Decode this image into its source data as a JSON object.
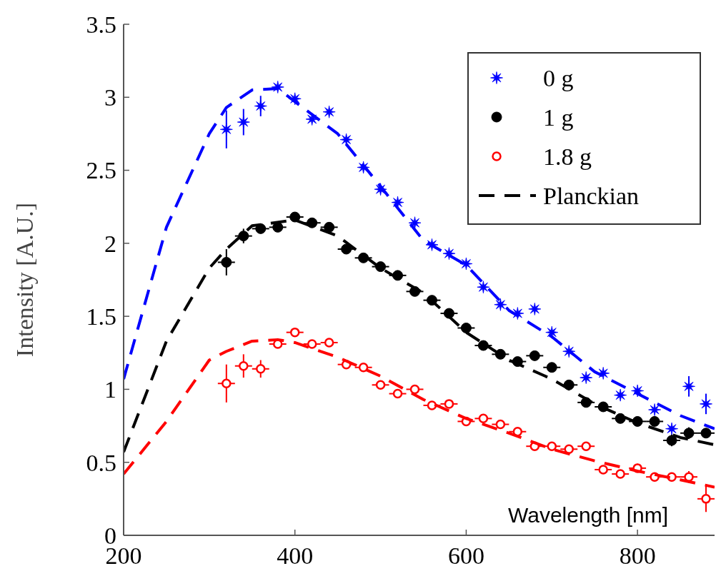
{
  "chart_data": {
    "type": "scatter",
    "xlabel": "Wavelength [nm]",
    "ylabel": "Intensity [A.U.]",
    "xlim": [
      200,
      890
    ],
    "ylim": [
      0,
      3.5
    ],
    "xticks": [
      200,
      400,
      600,
      800
    ],
    "yticks": [
      0,
      0.5,
      1,
      1.5,
      2,
      2.5,
      3,
      3.5
    ],
    "grid": false,
    "legend": "top right",
    "x": [
      320,
      340,
      360,
      380,
      400,
      420,
      440,
      460,
      480,
      500,
      520,
      540,
      560,
      580,
      600,
      620,
      640,
      660,
      680,
      700,
      720,
      740,
      760,
      780,
      800,
      820,
      840,
      860,
      880
    ],
    "series": [
      {
        "name": "0 g",
        "marker": "star",
        "color": "#0000ff",
        "values": [
          2.78,
          2.83,
          2.94,
          3.07,
          2.99,
          2.85,
          2.9,
          2.71,
          2.52,
          2.37,
          2.28,
          2.14,
          1.99,
          1.93,
          1.86,
          1.7,
          1.58,
          1.52,
          1.55,
          1.39,
          1.26,
          1.08,
          1.11,
          0.96,
          0.99,
          0.86,
          0.73,
          1.02,
          0.9
        ],
        "errors": [
          0.13,
          0.09,
          0.07,
          null,
          null,
          null,
          null,
          null,
          null,
          null,
          null,
          null,
          null,
          null,
          null,
          null,
          null,
          null,
          null,
          null,
          null,
          null,
          null,
          null,
          null,
          null,
          null,
          0.07,
          0.07
        ]
      },
      {
        "name": "1 g",
        "marker": "circle",
        "color": "#000000",
        "values": [
          1.87,
          2.05,
          2.1,
          2.11,
          2.18,
          2.14,
          2.11,
          1.96,
          1.9,
          1.84,
          1.78,
          1.67,
          1.61,
          1.52,
          1.42,
          1.3,
          1.24,
          1.19,
          1.23,
          1.15,
          1.03,
          0.91,
          0.88,
          0.8,
          0.78,
          0.78,
          0.65,
          0.7,
          0.7
        ],
        "errors": [
          0.09,
          0.05,
          null,
          null,
          null,
          null,
          null,
          null,
          null,
          null,
          null,
          null,
          null,
          null,
          null,
          null,
          null,
          null,
          null,
          null,
          null,
          null,
          null,
          null,
          null,
          null,
          0.04,
          0.04,
          null
        ],
        "xerrors": [
          10,
          10,
          10,
          10,
          10,
          10,
          10,
          10,
          10,
          10,
          10,
          10,
          10,
          10,
          10,
          10,
          10,
          10,
          10,
          10,
          10,
          10,
          10,
          10,
          10,
          10,
          10,
          10,
          10
        ]
      },
      {
        "name": "1.8 g",
        "marker": "circle",
        "color": "#ff0000",
        "values": [
          1.04,
          1.16,
          1.14,
          1.31,
          1.39,
          1.31,
          1.32,
          1.17,
          1.15,
          1.03,
          0.97,
          1.0,
          0.89,
          0.9,
          0.78,
          0.8,
          0.76,
          0.71,
          0.61,
          0.61,
          0.59,
          0.61,
          0.45,
          0.42,
          0.46,
          0.4,
          0.4,
          0.4,
          0.25
        ],
        "errors": [
          0.13,
          0.08,
          0.06,
          null,
          null,
          null,
          null,
          null,
          null,
          null,
          null,
          null,
          null,
          null,
          null,
          null,
          null,
          null,
          null,
          null,
          null,
          null,
          null,
          null,
          0.03,
          null,
          0.03,
          0.04,
          0.09
        ],
        "xerrors": [
          10,
          10,
          10,
          10,
          10,
          10,
          10,
          10,
          10,
          10,
          10,
          10,
          10,
          10,
          10,
          10,
          10,
          10,
          10,
          10,
          10,
          10,
          10,
          10,
          10,
          10,
          10,
          10,
          10
        ]
      },
      {
        "type": "line",
        "line_style": "dashed",
        "marker": "none",
        "color": "#0000ff",
        "x": [
          200,
          250,
          300,
          320,
          350,
          380,
          400,
          450,
          500,
          550,
          600,
          650,
          700,
          750,
          800,
          850,
          890
        ],
        "values": [
          1.07,
          2.11,
          2.75,
          2.93,
          3.05,
          3.06,
          2.97,
          2.75,
          2.39,
          2.02,
          1.85,
          1.54,
          1.36,
          1.12,
          0.97,
          0.82,
          0.73
        ]
      },
      {
        "name": "Planckian",
        "type": "line",
        "line_style": "dashed",
        "marker": "none",
        "color": "#000000",
        "x": [
          200,
          250,
          300,
          320,
          350,
          400,
          450,
          500,
          550,
          600,
          650,
          700,
          750,
          800,
          850,
          890
        ],
        "values": [
          0.57,
          1.33,
          1.83,
          1.96,
          2.12,
          2.16,
          2.05,
          1.83,
          1.66,
          1.39,
          1.2,
          1.07,
          0.9,
          0.77,
          0.67,
          0.62
        ]
      },
      {
        "type": "line",
        "line_style": "dashed",
        "marker": "none",
        "color": "#ff0000",
        "x": [
          200,
          250,
          300,
          320,
          350,
          380,
          400,
          450,
          500,
          550,
          600,
          650,
          700,
          750,
          800,
          850,
          890
        ],
        "values": [
          0.42,
          0.78,
          1.2,
          1.26,
          1.33,
          1.34,
          1.32,
          1.22,
          1.09,
          0.93,
          0.8,
          0.7,
          0.59,
          0.51,
          0.44,
          0.38,
          0.33
        ]
      }
    ]
  }
}
